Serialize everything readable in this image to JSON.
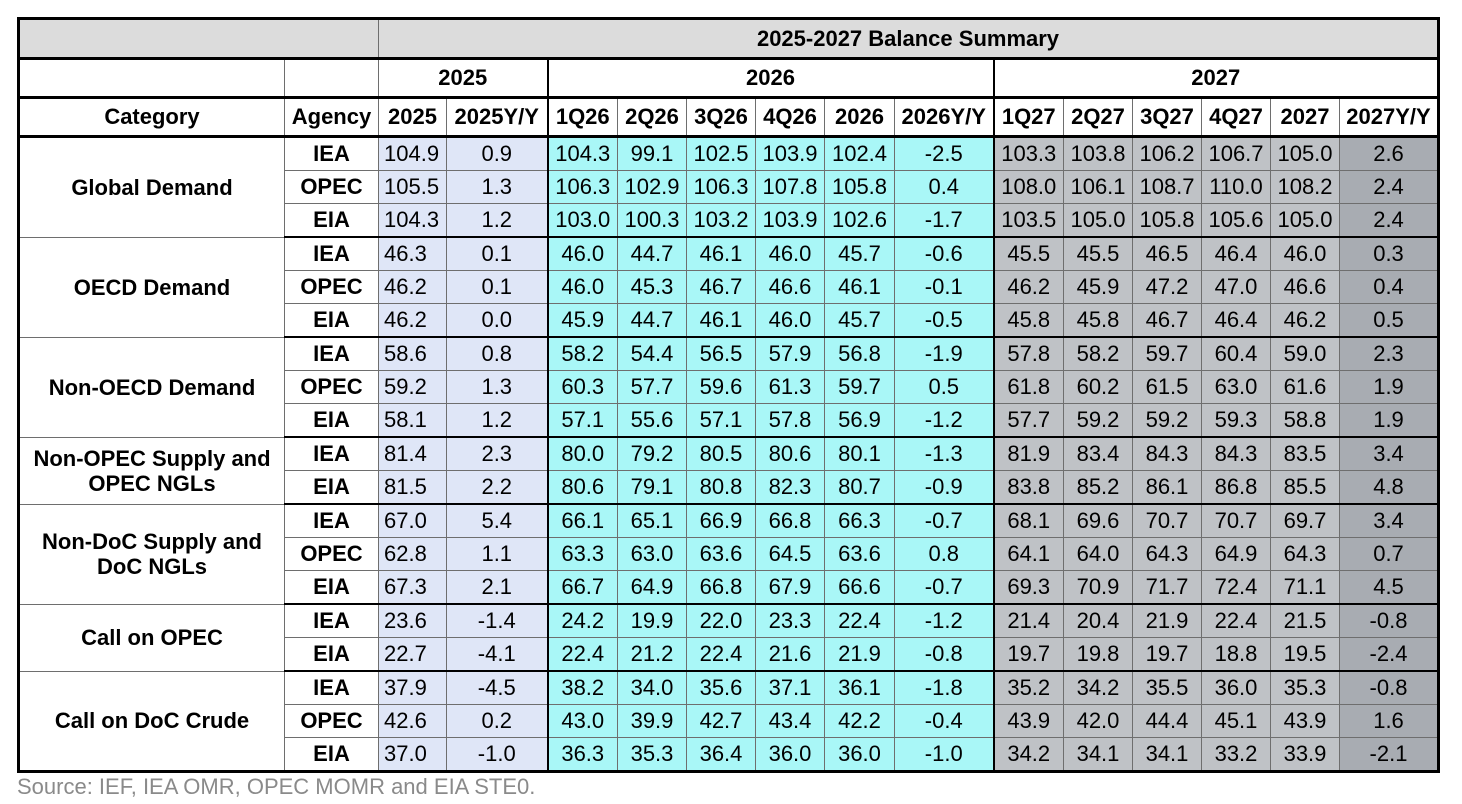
{
  "chart_data": {
    "type": "table",
    "title": "2025-2027 Balance Summary",
    "year_groups": [
      "2025",
      "2026",
      "2027"
    ],
    "columns": [
      "Category",
      "Agency",
      "2025",
      "2025Y/Y",
      "1Q26",
      "2Q26",
      "3Q26",
      "4Q26",
      "2026",
      "2026Y/Y",
      "1Q27",
      "2Q27",
      "3Q27",
      "4Q27",
      "2027",
      "2027Y/Y"
    ],
    "groups": [
      {
        "category": "Global Demand",
        "rows": [
          {
            "agency": "IEA",
            "values": [
              "104.9",
              "0.9",
              "104.3",
              "99.1",
              "102.5",
              "103.9",
              "102.4",
              "-2.5",
              "103.3",
              "103.8",
              "106.2",
              "106.7",
              "105.0",
              "2.6"
            ]
          },
          {
            "agency": "OPEC",
            "values": [
              "105.5",
              "1.3",
              "106.3",
              "102.9",
              "106.3",
              "107.8",
              "105.8",
              "0.4",
              "108.0",
              "106.1",
              "108.7",
              "110.0",
              "108.2",
              "2.4"
            ]
          },
          {
            "agency": "EIA",
            "values": [
              "104.3",
              "1.2",
              "103.0",
              "100.3",
              "103.2",
              "103.9",
              "102.6",
              "-1.7",
              "103.5",
              "105.0",
              "105.8",
              "105.6",
              "105.0",
              "2.4"
            ]
          }
        ]
      },
      {
        "category": "OECD Demand",
        "rows": [
          {
            "agency": "IEA",
            "values": [
              "46.3",
              "0.1",
              "46.0",
              "44.7",
              "46.1",
              "46.0",
              "45.7",
              "-0.6",
              "45.5",
              "45.5",
              "46.5",
              "46.4",
              "46.0",
              "0.3"
            ]
          },
          {
            "agency": "OPEC",
            "values": [
              "46.2",
              "0.1",
              "46.0",
              "45.3",
              "46.7",
              "46.6",
              "46.1",
              "-0.1",
              "46.2",
              "45.9",
              "47.2",
              "47.0",
              "46.6",
              "0.4"
            ]
          },
          {
            "agency": "EIA",
            "values": [
              "46.2",
              "0.0",
              "45.9",
              "44.7",
              "46.1",
              "46.0",
              "45.7",
              "-0.5",
              "45.8",
              "45.8",
              "46.7",
              "46.4",
              "46.2",
              "0.5"
            ]
          }
        ]
      },
      {
        "category": "Non-OECD Demand",
        "rows": [
          {
            "agency": "IEA",
            "values": [
              "58.6",
              "0.8",
              "58.2",
              "54.4",
              "56.5",
              "57.9",
              "56.8",
              "-1.9",
              "57.8",
              "58.2",
              "59.7",
              "60.4",
              "59.0",
              "2.3"
            ]
          },
          {
            "agency": "OPEC",
            "values": [
              "59.2",
              "1.3",
              "60.3",
              "57.7",
              "59.6",
              "61.3",
              "59.7",
              "0.5",
              "61.8",
              "60.2",
              "61.5",
              "63.0",
              "61.6",
              "1.9"
            ]
          },
          {
            "agency": "EIA",
            "values": [
              "58.1",
              "1.2",
              "57.1",
              "55.6",
              "57.1",
              "57.8",
              "56.9",
              "-1.2",
              "57.7",
              "59.2",
              "59.2",
              "59.3",
              "58.8",
              "1.9"
            ]
          }
        ]
      },
      {
        "category": "Non-OPEC Supply and OPEC NGLs",
        "rows": [
          {
            "agency": "IEA",
            "values": [
              "81.4",
              "2.3",
              "80.0",
              "79.2",
              "80.5",
              "80.6",
              "80.1",
              "-1.3",
              "81.9",
              "83.4",
              "84.3",
              "84.3",
              "83.5",
              "3.4"
            ]
          },
          {
            "agency": "EIA",
            "values": [
              "81.5",
              "2.2",
              "80.6",
              "79.1",
              "80.8",
              "82.3",
              "80.7",
              "-0.9",
              "83.8",
              "85.2",
              "86.1",
              "86.8",
              "85.5",
              "4.8"
            ]
          }
        ]
      },
      {
        "category": "Non-DoC Supply and DoC NGLs",
        "rows": [
          {
            "agency": "IEA",
            "values": [
              "67.0",
              "5.4",
              "66.1",
              "65.1",
              "66.9",
              "66.8",
              "66.3",
              "-0.7",
              "68.1",
              "69.6",
              "70.7",
              "70.7",
              "69.7",
              "3.4"
            ]
          },
          {
            "agency": "OPEC",
            "values": [
              "62.8",
              "1.1",
              "63.3",
              "63.0",
              "63.6",
              "64.5",
              "63.6",
              "0.8",
              "64.1",
              "64.0",
              "64.3",
              "64.9",
              "64.3",
              "0.7"
            ]
          },
          {
            "agency": "EIA",
            "values": [
              "67.3",
              "2.1",
              "66.7",
              "64.9",
              "66.8",
              "67.9",
              "66.6",
              "-0.7",
              "69.3",
              "70.9",
              "71.7",
              "72.4",
              "71.1",
              "4.5"
            ]
          }
        ]
      },
      {
        "category": "Call on OPEC",
        "rows": [
          {
            "agency": "IEA",
            "values": [
              "23.6",
              "-1.4",
              "24.2",
              "19.9",
              "22.0",
              "23.3",
              "22.4",
              "-1.2",
              "21.4",
              "20.4",
              "21.9",
              "22.4",
              "21.5",
              "-0.8"
            ]
          },
          {
            "agency": "EIA",
            "values": [
              "22.7",
              "-4.1",
              "22.4",
              "21.2",
              "22.4",
              "21.6",
              "21.9",
              "-0.8",
              "19.7",
              "19.8",
              "19.7",
              "18.8",
              "19.5",
              "-2.4"
            ]
          }
        ]
      },
      {
        "category": "Call on DoC Crude",
        "rows": [
          {
            "agency": "IEA",
            "values": [
              "37.9",
              "-4.5",
              "38.2",
              "34.0",
              "35.6",
              "37.1",
              "36.1",
              "-1.8",
              "35.2",
              "34.2",
              "35.5",
              "36.0",
              "35.3",
              "-0.8"
            ]
          },
          {
            "agency": "OPEC",
            "values": [
              "42.6",
              "0.2",
              "43.0",
              "39.9",
              "42.7",
              "43.4",
              "42.2",
              "-0.4",
              "43.9",
              "42.0",
              "44.4",
              "45.1",
              "43.9",
              "1.6"
            ]
          },
          {
            "agency": "EIA",
            "values": [
              "37.0",
              "-1.0",
              "36.3",
              "35.3",
              "36.4",
              "36.0",
              "36.0",
              "-1.0",
              "34.2",
              "34.1",
              "34.1",
              "33.2",
              "33.9",
              "-2.1"
            ]
          }
        ]
      }
    ]
  },
  "source": "Source: IEF, IEA OMR, OPEC MOMR and EIA STE0.",
  "colors": {
    "y2025": "#dfe6f7",
    "y2026": "#a9f7f7",
    "y2027_quarters": "#bfc2c6",
    "y2027_yoy": "#a8acb2",
    "title_bg": "#dcdcdc"
  }
}
